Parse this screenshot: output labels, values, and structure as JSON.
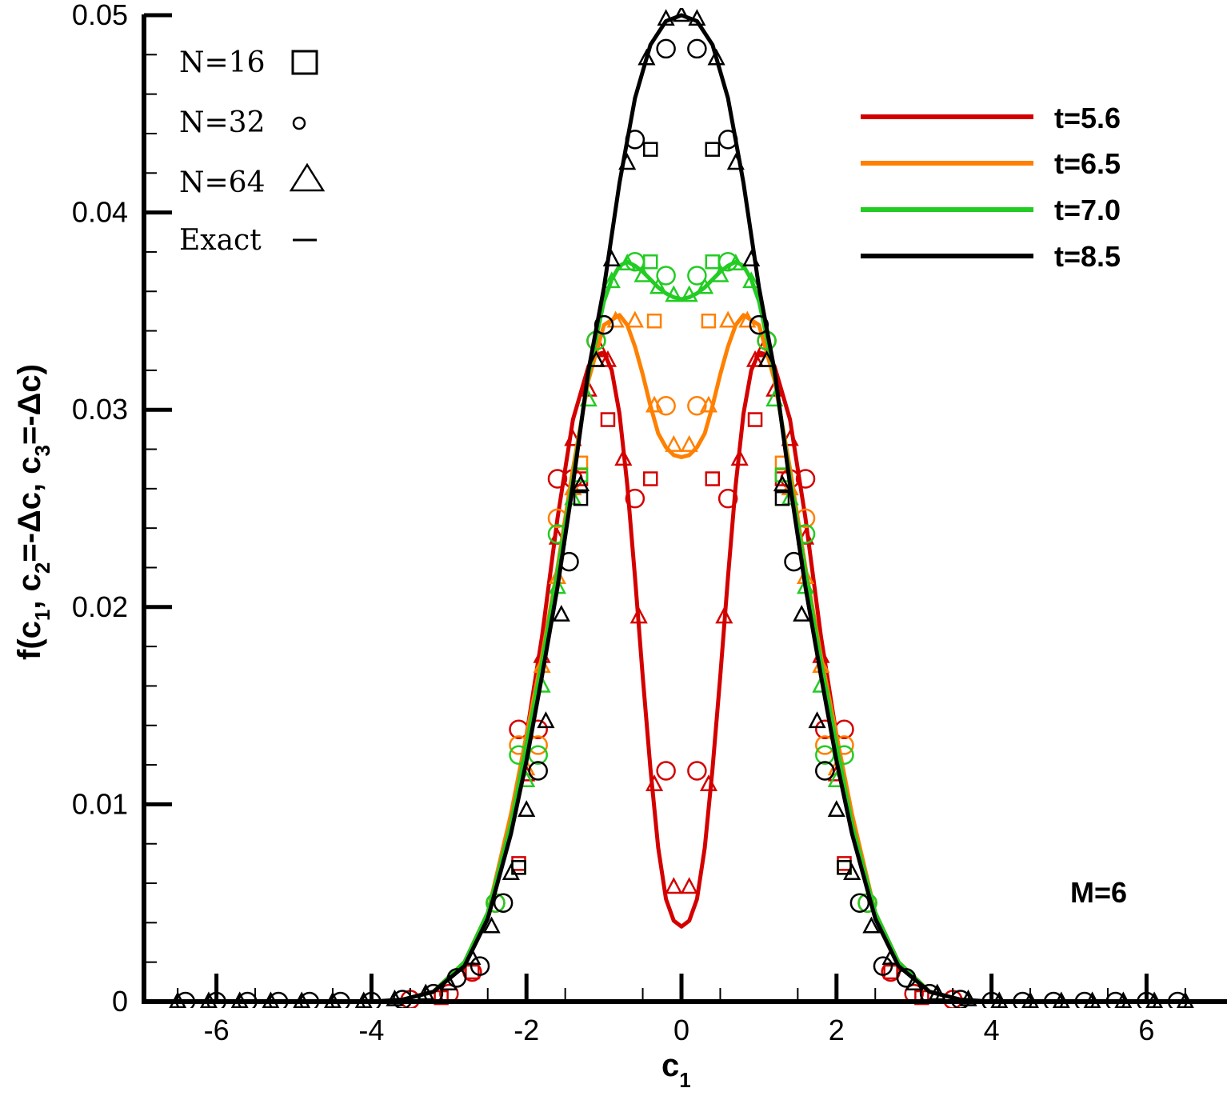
{
  "chart_data": {
    "type": "line",
    "xlabel": "c",
    "xlabel_sub": "1",
    "ylabel_parts": [
      "f(c",
      "1",
      ", c",
      "2",
      "=-Δc, c",
      "3",
      "=-Δc)"
    ],
    "xlim": [
      -6.8,
      7.0
    ],
    "ylim": [
      0,
      0.05
    ],
    "x_ticks": [
      -6,
      -4,
      -2,
      0,
      2,
      4,
      6
    ],
    "x_tick_labels": [
      "-6",
      "-4",
      "-2",
      "0",
      "2",
      "4",
      "6"
    ],
    "y_ticks": [
      0,
      0.01,
      0.02,
      0.03,
      0.04,
      0.05
    ],
    "y_tick_labels": [
      "0",
      "0.01",
      "0.02",
      "0.03",
      "0.04",
      "0.05"
    ],
    "grid": false,
    "annotation": "M=6",
    "marker_legend": {
      "placement": "top-left",
      "items": [
        {
          "label": "N=16",
          "marker": "square"
        },
        {
          "label": "N=32",
          "marker": "circle"
        },
        {
          "label": "N=64",
          "marker": "triangle"
        },
        {
          "label": "Exact",
          "marker": "line"
        }
      ]
    },
    "series_legend_placement": "top-right",
    "series": [
      {
        "name": "t=5.6",
        "color": "#d40000",
        "exact": {
          "x": [
            -3.6,
            -3.2,
            -2.8,
            -2.5,
            -2.2,
            -2.0,
            -1.8,
            -1.6,
            -1.4,
            -1.2,
            -1.1,
            -1.0,
            -0.9,
            -0.8,
            -0.7,
            -0.6,
            -0.5,
            -0.4,
            -0.3,
            -0.2,
            -0.1,
            0.0,
            0.1,
            0.2,
            0.3,
            0.4,
            0.5,
            0.6,
            0.7,
            0.8,
            0.9,
            1.0,
            1.1,
            1.2,
            1.4,
            1.6,
            1.8,
            2.0,
            2.2,
            2.5,
            2.8,
            3.2,
            3.6
          ],
          "y": [
            0.0001,
            0.0005,
            0.002,
            0.0045,
            0.009,
            0.0135,
            0.0185,
            0.0245,
            0.0295,
            0.0322,
            0.0328,
            0.0329,
            0.032,
            0.0298,
            0.0262,
            0.0215,
            0.0165,
            0.0118,
            0.0078,
            0.0052,
            0.0041,
            0.0038,
            0.0041,
            0.0052,
            0.0078,
            0.0118,
            0.0165,
            0.0215,
            0.0262,
            0.0298,
            0.032,
            0.0329,
            0.0328,
            0.0322,
            0.0295,
            0.0245,
            0.0185,
            0.0135,
            0.009,
            0.0045,
            0.002,
            0.0005,
            0.0001
          ]
        },
        "N16": {
          "x": [
            -3.1,
            -2.7,
            -2.1,
            -1.3,
            -0.95,
            -0.4,
            0.4,
            0.95,
            1.3,
            2.1,
            2.7,
            3.1
          ],
          "y": [
            0.0002,
            0.0015,
            0.007,
            0.0265,
            0.0295,
            0.0265,
            0.0265,
            0.0295,
            0.0265,
            0.007,
            0.0015,
            0.0002
          ]
        },
        "N32": {
          "x": [
            -3.5,
            -3.0,
            -2.7,
            -2.4,
            -2.1,
            -1.85,
            -1.6,
            -1.4,
            -1.1,
            -0.6,
            -0.2,
            0.2,
            0.6,
            1.1,
            1.4,
            1.6,
            1.85,
            2.1,
            2.4,
            2.7,
            3.0,
            3.5
          ],
          "y": [
            0.0001,
            0.0004,
            0.0015,
            0.005,
            0.0138,
            0.0138,
            0.0265,
            0.0265,
            0.0335,
            0.0255,
            0.0117,
            0.0117,
            0.0255,
            0.0335,
            0.0265,
            0.0265,
            0.0138,
            0.0138,
            0.005,
            0.0015,
            0.0004,
            0.0001
          ]
        },
        "N64": {
          "x": [
            -2.0,
            -1.8,
            -1.6,
            -1.4,
            -1.2,
            -1.05,
            -0.95,
            -0.75,
            -0.55,
            -0.35,
            -0.1,
            0.1,
            0.35,
            0.55,
            0.75,
            0.95,
            1.05,
            1.2,
            1.4,
            1.6,
            1.8,
            2.0
          ],
          "y": [
            0.0115,
            0.0175,
            0.0235,
            0.0285,
            0.031,
            0.033,
            0.0325,
            0.0275,
            0.0195,
            0.011,
            0.0058,
            0.0058,
            0.011,
            0.0195,
            0.0275,
            0.0325,
            0.033,
            0.031,
            0.0285,
            0.0235,
            0.0175,
            0.0115
          ]
        }
      },
      {
        "name": "t=6.5",
        "color": "#ff8000",
        "exact": {
          "x": [
            -3.6,
            -3.2,
            -2.8,
            -2.5,
            -2.2,
            -2.0,
            -1.8,
            -1.6,
            -1.4,
            -1.2,
            -1.0,
            -0.8,
            -0.7,
            -0.6,
            -0.5,
            -0.4,
            -0.3,
            -0.2,
            -0.1,
            0.0,
            0.1,
            0.2,
            0.3,
            0.4,
            0.5,
            0.6,
            0.7,
            0.8,
            1.0,
            1.2,
            1.4,
            1.6,
            1.8,
            2.0,
            2.2,
            2.5,
            2.8,
            3.2,
            3.6
          ],
          "y": [
            0.0001,
            0.0005,
            0.002,
            0.0045,
            0.0095,
            0.0135,
            0.0175,
            0.022,
            0.027,
            0.0315,
            0.0343,
            0.0348,
            0.0343,
            0.0332,
            0.0318,
            0.0302,
            0.0288,
            0.0281,
            0.0277,
            0.0276,
            0.0277,
            0.0281,
            0.0288,
            0.0302,
            0.0318,
            0.0332,
            0.0343,
            0.0348,
            0.0343,
            0.0315,
            0.027,
            0.022,
            0.0175,
            0.0135,
            0.0095,
            0.0045,
            0.002,
            0.0005,
            0.0001
          ]
        },
        "N16": {
          "x": [
            -2.1,
            -1.3,
            -0.35,
            0.35,
            1.3,
            2.1
          ],
          "y": [
            0.0068,
            0.0273,
            0.0345,
            0.0345,
            0.0273,
            0.0068
          ]
        },
        "N32": {
          "x": [
            -2.4,
            -2.1,
            -1.85,
            -1.6,
            -0.2,
            0.2,
            1.6,
            1.85,
            2.1,
            2.4
          ],
          "y": [
            0.005,
            0.013,
            0.013,
            0.0245,
            0.0302,
            0.0302,
            0.0245,
            0.013,
            0.013,
            0.005
          ]
        },
        "N64": {
          "x": [
            -2.0,
            -1.8,
            -1.6,
            -1.4,
            -1.1,
            -0.85,
            -0.6,
            -0.35,
            -0.1,
            0.1,
            0.35,
            0.6,
            0.85,
            1.1,
            1.4,
            1.6,
            1.8,
            2.0
          ],
          "y": [
            0.0118,
            0.017,
            0.0215,
            0.026,
            0.0325,
            0.0345,
            0.0345,
            0.0302,
            0.0282,
            0.0282,
            0.0302,
            0.0345,
            0.0345,
            0.0325,
            0.026,
            0.0215,
            0.017,
            0.0118
          ]
        }
      },
      {
        "name": "t=7.0",
        "color": "#22cc22",
        "exact": {
          "x": [
            -3.6,
            -3.2,
            -2.8,
            -2.5,
            -2.2,
            -2.0,
            -1.8,
            -1.6,
            -1.4,
            -1.2,
            -1.0,
            -0.9,
            -0.8,
            -0.7,
            -0.6,
            -0.5,
            -0.4,
            -0.3,
            -0.2,
            -0.1,
            0.0,
            0.1,
            0.2,
            0.3,
            0.4,
            0.5,
            0.6,
            0.7,
            0.8,
            0.9,
            1.0,
            1.2,
            1.4,
            1.6,
            1.8,
            2.0,
            2.2,
            2.5,
            2.8,
            3.2,
            3.6
          ],
          "y": [
            0.0001,
            0.0005,
            0.002,
            0.0045,
            0.009,
            0.013,
            0.0172,
            0.0218,
            0.0265,
            0.0318,
            0.0355,
            0.0366,
            0.0373,
            0.0375,
            0.0373,
            0.037,
            0.0366,
            0.0362,
            0.0359,
            0.0357,
            0.0356,
            0.0357,
            0.0359,
            0.0362,
            0.0366,
            0.037,
            0.0373,
            0.0375,
            0.0373,
            0.0366,
            0.0355,
            0.0318,
            0.0265,
            0.0218,
            0.0172,
            0.013,
            0.009,
            0.0045,
            0.002,
            0.0005,
            0.0001
          ]
        },
        "N16": {
          "x": [
            -2.1,
            -1.3,
            -0.4,
            0.4,
            1.3,
            2.1
          ],
          "y": [
            0.0068,
            0.0267,
            0.0375,
            0.0375,
            0.0267,
            0.0068
          ]
        },
        "N32": {
          "x": [
            -2.4,
            -2.1,
            -1.85,
            -1.6,
            -1.1,
            -0.6,
            -0.2,
            0.2,
            0.6,
            1.1,
            1.6,
            1.85,
            2.1,
            2.4
          ],
          "y": [
            0.005,
            0.0125,
            0.0125,
            0.0237,
            0.0335,
            0.0375,
            0.0368,
            0.0368,
            0.0375,
            0.0335,
            0.0237,
            0.0125,
            0.0125,
            0.005
          ]
        },
        "N64": {
          "x": [
            -2.0,
            -1.8,
            -1.6,
            -1.4,
            -1.2,
            -0.9,
            -0.7,
            -0.5,
            -0.3,
            -0.1,
            0.1,
            0.3,
            0.5,
            0.7,
            0.9,
            1.2,
            1.4,
            1.6,
            1.8,
            2.0
          ],
          "y": [
            0.0112,
            0.016,
            0.021,
            0.0255,
            0.0305,
            0.0365,
            0.0374,
            0.0368,
            0.0362,
            0.0358,
            0.0358,
            0.0362,
            0.0368,
            0.0374,
            0.0365,
            0.0305,
            0.0255,
            0.021,
            0.016,
            0.0112
          ]
        }
      },
      {
        "name": "t=8.5",
        "color": "#000000",
        "exact": {
          "x": [
            -6.7,
            -4.0,
            -3.6,
            -3.2,
            -2.8,
            -2.5,
            -2.2,
            -2.0,
            -1.8,
            -1.6,
            -1.4,
            -1.2,
            -1.0,
            -0.8,
            -0.6,
            -0.4,
            -0.2,
            0.0,
            0.2,
            0.4,
            0.6,
            0.8,
            1.0,
            1.2,
            1.4,
            1.6,
            1.8,
            2.0,
            2.2,
            2.5,
            2.8,
            3.2,
            3.6,
            4.0,
            6.7
          ],
          "y": [
            0.0,
            0.0,
            0.0001,
            0.0005,
            0.0018,
            0.0042,
            0.0085,
            0.0122,
            0.0165,
            0.021,
            0.0262,
            0.032,
            0.0362,
            0.0415,
            0.0458,
            0.0485,
            0.0497,
            0.05,
            0.0497,
            0.0485,
            0.0458,
            0.0415,
            0.0362,
            0.032,
            0.0262,
            0.021,
            0.0165,
            0.0122,
            0.0085,
            0.0042,
            0.0018,
            0.0005,
            0.0001,
            0.0,
            0.0
          ]
        },
        "N16": {
          "x": [
            -2.1,
            -1.3,
            -0.4,
            0.4,
            1.3,
            2.1
          ],
          "y": [
            0.0068,
            0.0255,
            0.0432,
            0.0432,
            0.0255,
            0.0068
          ]
        },
        "N32": {
          "x": [
            -6.4,
            -6.0,
            -5.6,
            -5.2,
            -4.8,
            -4.4,
            -4.0,
            -3.6,
            -3.2,
            -2.9,
            -2.6,
            -2.3,
            -1.85,
            -1.45,
            -1.0,
            -0.6,
            -0.2,
            0.2,
            0.6,
            1.0,
            1.45,
            1.85,
            2.3,
            2.6,
            2.9,
            3.2,
            3.6,
            4.0,
            4.4,
            4.8,
            5.2,
            5.6,
            6.0,
            6.4
          ],
          "y": [
            0.0,
            0.0,
            0.0,
            0.0,
            0.0,
            0.0,
            0.0,
            0.0001,
            0.0004,
            0.0012,
            0.0018,
            0.005,
            0.0117,
            0.0223,
            0.0343,
            0.0437,
            0.0483,
            0.0483,
            0.0437,
            0.0343,
            0.0223,
            0.0117,
            0.005,
            0.0018,
            0.0012,
            0.0004,
            0.0001,
            0.0,
            0.0,
            0.0,
            0.0,
            0.0,
            0.0,
            0.0
          ]
        },
        "N64": {
          "x": [
            -6.5,
            -6.1,
            -5.7,
            -5.3,
            -4.9,
            -4.5,
            -4.1,
            -3.7,
            -3.3,
            -3.0,
            -2.7,
            -2.45,
            -2.2,
            -2.0,
            -1.75,
            -1.55,
            -1.3,
            -1.1,
            -0.9,
            -0.7,
            -0.45,
            -0.2,
            0.0,
            0.2,
            0.45,
            0.7,
            0.9,
            1.1,
            1.3,
            1.55,
            1.75,
            2.0,
            2.2,
            2.45,
            2.7,
            3.0,
            3.3,
            3.7,
            4.1,
            4.5,
            4.9,
            5.3,
            5.7,
            6.1,
            6.5
          ],
          "y": [
            0.0,
            0.0,
            0.0,
            0.0,
            0.0,
            0.0,
            0.0,
            0.0001,
            0.0004,
            0.0009,
            0.0022,
            0.0038,
            0.0065,
            0.0097,
            0.0142,
            0.0196,
            0.0262,
            0.0325,
            0.0376,
            0.0425,
            0.0478,
            0.0498,
            0.05,
            0.0498,
            0.0478,
            0.0425,
            0.0376,
            0.0325,
            0.0262,
            0.0196,
            0.0142,
            0.0097,
            0.0065,
            0.0038,
            0.0022,
            0.0009,
            0.0004,
            0.0001,
            0.0,
            0.0,
            0.0,
            0.0,
            0.0,
            0.0,
            0.0
          ]
        }
      }
    ]
  }
}
